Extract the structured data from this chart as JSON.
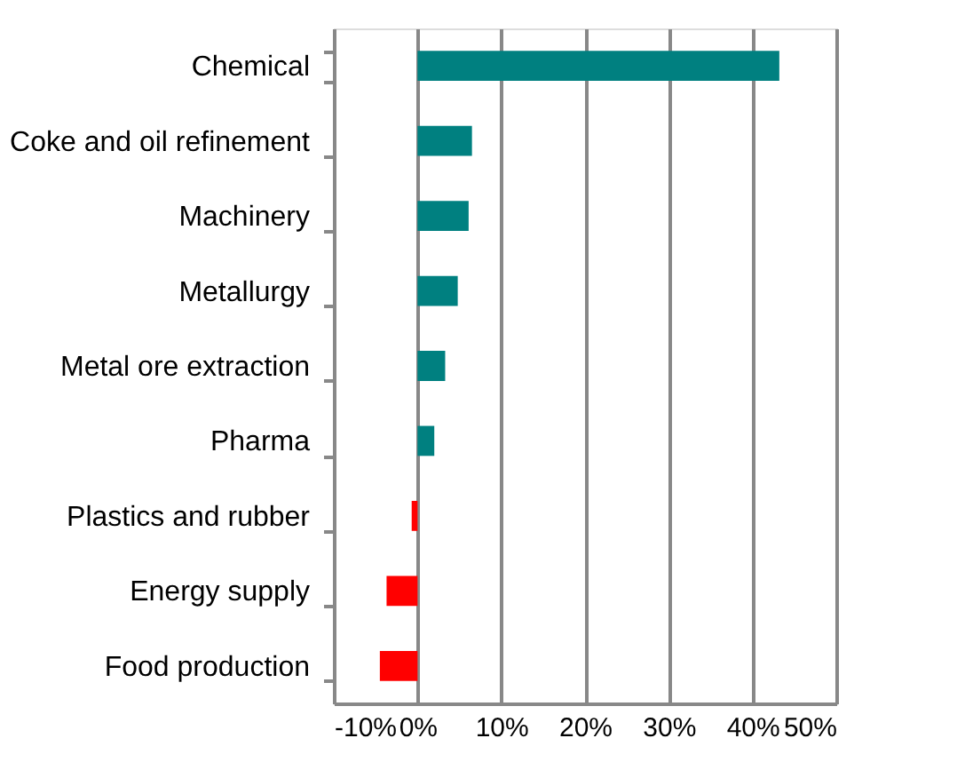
{
  "chart_data": {
    "type": "bar",
    "orientation": "horizontal",
    "categories": [
      "Chemical",
      "Coke and oil refinement",
      "Machinery",
      "Metallurgy",
      "Metal ore extraction",
      "Pharma",
      "Plastics and rubber",
      "Energy supply",
      "Food production"
    ],
    "values": [
      43.2,
      6.5,
      6.1,
      4.8,
      3.3,
      2.0,
      -0.7,
      -3.7,
      -4.5
    ],
    "colors": [
      "#008080",
      "#008080",
      "#008080",
      "#008080",
      "#008080",
      "#008080",
      "#ff0000",
      "#ff0000",
      "#ff0000"
    ],
    "xlim": [
      -10,
      50
    ],
    "xticks": [
      {
        "value": -10,
        "label": "-10%"
      },
      {
        "value": 0,
        "label": "0%"
      },
      {
        "value": 10,
        "label": "10%"
      },
      {
        "value": 20,
        "label": "20%"
      },
      {
        "value": 30,
        "label": "30%"
      },
      {
        "value": 40,
        "label": "40%"
      },
      {
        "value": 50,
        "label": "50%"
      }
    ],
    "grid": "x"
  }
}
